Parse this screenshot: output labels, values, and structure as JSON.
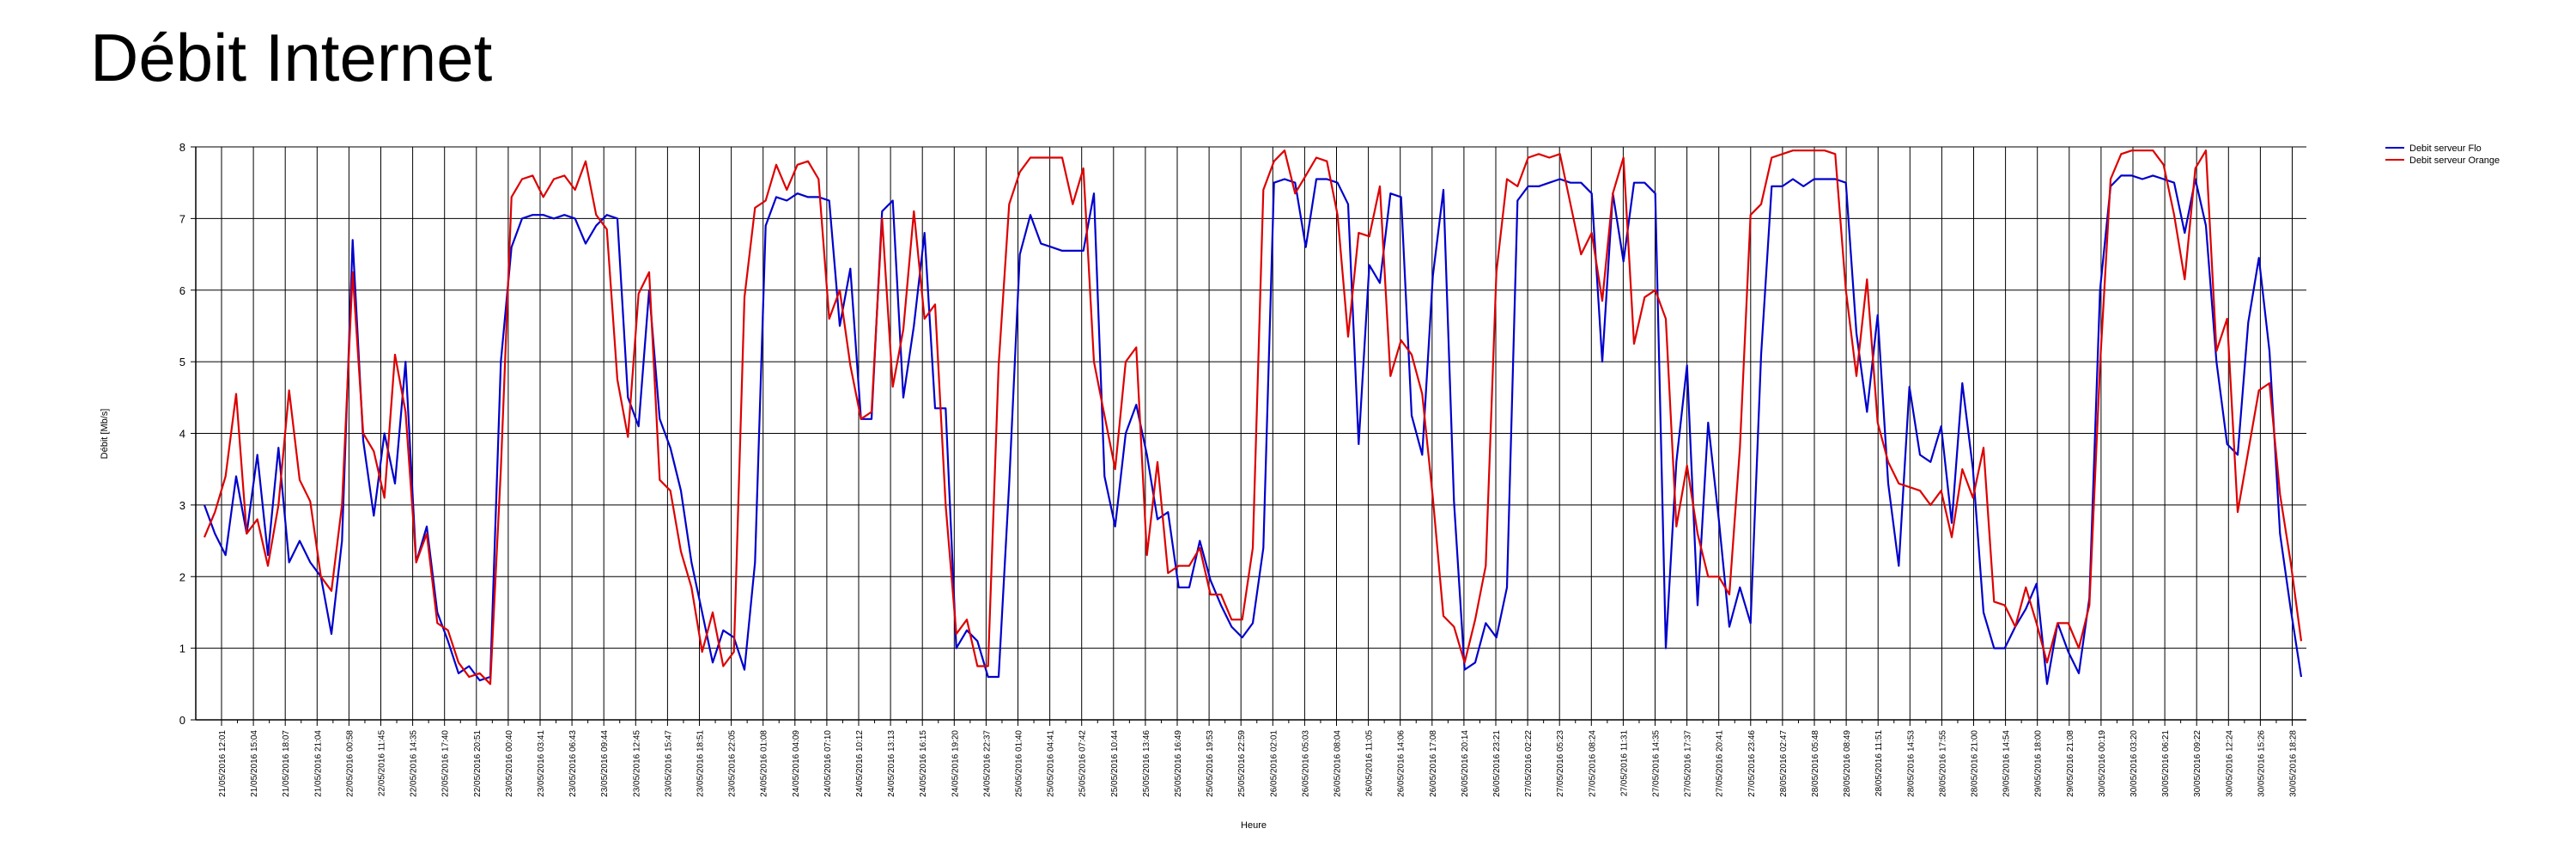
{
  "chart_data": {
    "type": "line",
    "title": "Débit Internet",
    "xlabel": "Heure",
    "ylabel": "Débit [Mb/s]",
    "ylim": [
      0,
      8
    ],
    "yticks": [
      0,
      1,
      2,
      3,
      4,
      5,
      6,
      7,
      8
    ],
    "grid": true,
    "legend_position": "top-right",
    "x_tick_labels": [
      "21/05/2016 12:01",
      "21/05/2016 15:04",
      "21/05/2016 18:07",
      "21/05/2016 21:04",
      "22/05/2016 00:58",
      "22/05/2016 11:45",
      "22/05/2016 14:35",
      "22/05/2016 17:40",
      "22/05/2016 20:51",
      "23/05/2016 00:40",
      "23/05/2016 03:41",
      "23/05/2016 06:43",
      "23/05/2016 09:44",
      "23/05/2016 12:45",
      "23/05/2016 15:47",
      "23/05/2016 18:51",
      "23/05/2016 22:05",
      "24/05/2016 01:08",
      "24/05/2016 04:09",
      "24/05/2016 07:10",
      "24/05/2016 10:12",
      "24/05/2016 13:13",
      "24/05/2016 16:15",
      "24/05/2016 19:20",
      "24/05/2016 22:37",
      "25/05/2016 01:40",
      "25/05/2016 04:41",
      "25/05/2016 07:42",
      "25/05/2016 10:44",
      "25/05/2016 13:46",
      "25/05/2016 16:49",
      "25/05/2016 19:53",
      "25/05/2016 22:59",
      "26/05/2016 02:01",
      "26/05/2016 05:03",
      "26/05/2016 08:04",
      "26/05/2016 11:05",
      "26/05/2016 14:06",
      "26/05/2016 17:08",
      "26/05/2016 20:14",
      "26/05/2016 23:21",
      "27/05/2016 02:22",
      "27/05/2016 05:23",
      "27/05/2016 08:24",
      "27/05/2016 11:31",
      "27/05/2016 14:35",
      "27/05/2016 17:37",
      "27/05/2016 20:41",
      "27/05/2016 23:46",
      "28/05/2016 02:47",
      "28/05/2016 05:48",
      "28/05/2016 08:49",
      "28/05/2016 11:51",
      "28/05/2016 14:53",
      "28/05/2016 17:55",
      "28/05/2016 21:00",
      "29/05/2016 14:54",
      "29/05/2016 18:00",
      "29/05/2016 21:08",
      "30/05/2016 00:19",
      "30/05/2016 03:20",
      "30/05/2016 06:21",
      "30/05/2016 09:22",
      "30/05/2016 12:24",
      "30/05/2016 15:26",
      "30/05/2016 18:28"
    ],
    "series": [
      {
        "name": "Debit serveur Flo",
        "color": "#0000cc",
        "values": [
          3.0,
          2.6,
          2.3,
          3.4,
          2.6,
          3.7,
          2.3,
          3.8,
          2.2,
          2.5,
          2.2,
          2.0,
          1.2,
          2.5,
          6.7,
          3.9,
          2.85,
          4.0,
          3.3,
          5.0,
          2.2,
          2.7,
          1.5,
          1.1,
          0.65,
          0.75,
          0.55,
          0.6,
          5.0,
          6.6,
          7.0,
          7.05,
          7.05,
          7.0,
          7.05,
          7.0,
          6.65,
          6.9,
          7.05,
          7.0,
          4.5,
          4.1,
          6.0,
          4.2,
          3.8,
          3.2,
          2.2,
          1.5,
          0.8,
          1.25,
          1.15,
          0.7,
          2.2,
          6.9,
          7.3,
          7.25,
          7.35,
          7.3,
          7.3,
          7.25,
          5.5,
          6.3,
          4.2,
          4.2,
          7.1,
          7.25,
          4.5,
          5.5,
          6.8,
          4.35,
          4.35,
          1.0,
          1.25,
          1.1,
          0.6,
          0.6,
          3.3,
          6.5,
          7.05,
          6.65,
          6.6,
          6.55,
          6.55,
          6.55,
          7.35,
          3.4,
          2.7,
          4.0,
          4.4,
          3.7,
          2.8,
          2.9,
          1.85,
          1.85,
          2.5,
          1.95,
          1.6,
          1.3,
          1.15,
          1.35,
          2.4,
          7.5,
          7.55,
          7.5,
          6.6,
          7.55,
          7.55,
          7.5,
          7.2,
          3.85,
          6.35,
          6.1,
          7.35,
          7.3,
          4.25,
          3.7,
          6.2,
          7.4,
          3.05,
          0.7,
          0.8,
          1.35,
          1.15,
          1.85,
          7.25,
          7.45,
          7.45,
          7.5,
          7.55,
          7.5,
          7.5,
          7.35,
          5.0,
          7.35,
          6.4,
          7.5,
          7.5,
          7.35,
          1.0,
          3.6,
          4.95,
          1.6,
          4.15,
          2.8,
          1.3,
          1.85,
          1.35,
          5.1,
          7.45,
          7.45,
          7.55,
          7.45,
          7.55,
          7.55,
          7.55,
          7.5,
          5.4,
          4.3,
          5.65,
          3.3,
          2.15,
          4.65,
          3.7,
          3.6,
          4.1,
          2.75,
          4.7,
          3.5,
          1.5,
          1.0,
          1.0,
          1.3,
          1.55,
          1.9,
          0.5,
          1.35,
          0.95,
          0.65,
          1.7,
          6.0,
          7.45,
          7.6,
          7.6,
          7.55,
          7.6,
          7.55,
          7.5,
          6.8,
          7.55,
          6.9,
          5.0,
          3.85,
          3.7,
          5.55,
          6.45,
          5.15,
          2.6,
          1.55,
          0.6
        ]
      },
      {
        "name": "Debit serveur Orange",
        "color": "#dd0000",
        "values": [
          2.55,
          2.9,
          3.4,
          4.55,
          2.6,
          2.8,
          2.15,
          3.0,
          4.6,
          3.35,
          3.05,
          2.0,
          1.8,
          3.0,
          6.25,
          4.0,
          3.75,
          3.1,
          5.1,
          4.3,
          2.2,
          2.6,
          1.35,
          1.25,
          0.8,
          0.6,
          0.65,
          0.5,
          3.5,
          7.3,
          7.55,
          7.6,
          7.3,
          7.55,
          7.6,
          7.4,
          7.8,
          7.05,
          6.85,
          4.75,
          3.95,
          5.95,
          6.25,
          3.35,
          3.2,
          2.35,
          1.85,
          0.95,
          1.5,
          0.75,
          0.95,
          5.9,
          7.15,
          7.25,
          7.75,
          7.4,
          7.75,
          7.8,
          7.55,
          5.6,
          6.0,
          4.95,
          4.2,
          4.3,
          7.0,
          4.65,
          5.45,
          7.1,
          5.6,
          5.8,
          3.0,
          1.2,
          1.4,
          0.75,
          0.75,
          4.95,
          7.2,
          7.65,
          7.85,
          7.85,
          7.85,
          7.85,
          7.2,
          7.7,
          5.0,
          4.25,
          3.5,
          5.0,
          5.2,
          2.3,
          3.6,
          2.05,
          2.15,
          2.15,
          2.4,
          1.75,
          1.75,
          1.4,
          1.4,
          2.4,
          7.4,
          7.8,
          7.95,
          7.35,
          7.6,
          7.85,
          7.8,
          7.05,
          5.35,
          6.8,
          6.75,
          7.45,
          4.8,
          5.3,
          5.1,
          4.55,
          3.1,
          1.45,
          1.3,
          0.8,
          1.4,
          2.15,
          6.25,
          7.55,
          7.45,
          7.85,
          7.9,
          7.85,
          7.9,
          7.2,
          6.5,
          6.8,
          5.85,
          7.35,
          7.85,
          5.25,
          5.9,
          6.0,
          5.6,
          2.7,
          3.55,
          2.6,
          2.0,
          2.0,
          1.75,
          3.8,
          7.05,
          7.2,
          7.85,
          7.9,
          7.95,
          7.95,
          7.95,
          7.95,
          7.9,
          6.0,
          4.8,
          6.15,
          4.15,
          3.6,
          3.3,
          3.25,
          3.2,
          3.0,
          3.2,
          2.55,
          3.5,
          3.1,
          3.8,
          1.65,
          1.6,
          1.3,
          1.85,
          1.35,
          0.8,
          1.35,
          1.35,
          1.0,
          1.6,
          4.95,
          7.55,
          7.9,
          7.95,
          7.95,
          7.95,
          7.75,
          7.05,
          6.15,
          7.7,
          7.95,
          5.15,
          5.6,
          2.9,
          3.75,
          4.6,
          4.7,
          3.15,
          2.2,
          1.1
        ]
      }
    ]
  }
}
